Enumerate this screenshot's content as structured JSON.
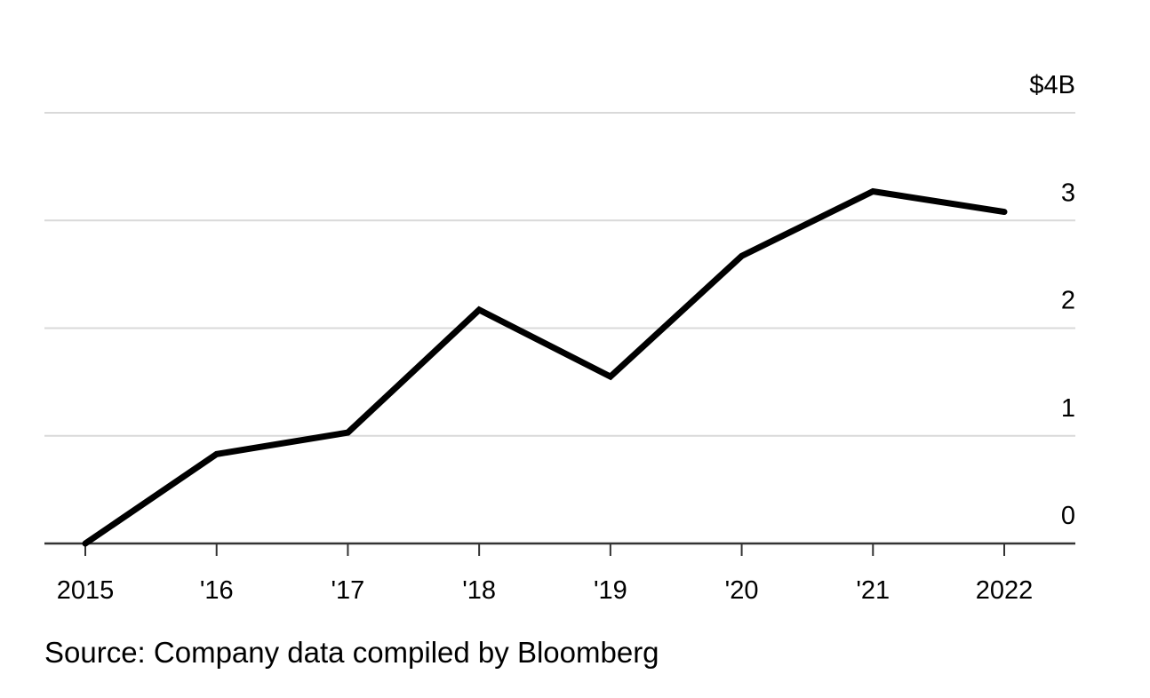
{
  "chart_data": {
    "type": "line",
    "x": [
      "2015",
      "'16",
      "'17",
      "'18",
      "'19",
      "'20",
      "'21",
      "2022"
    ],
    "series": [
      {
        "values": [
          0.0,
          0.83,
          1.03,
          2.17,
          1.55,
          2.67,
          3.27,
          3.08
        ]
      }
    ],
    "y_tick_labels": [
      "0",
      "1",
      "2",
      "3",
      "$4B"
    ],
    "ylim": [
      0,
      4
    ],
    "grid": true,
    "y_axis_side": "right",
    "line_color": "#000000",
    "grid_color": "#d9d9d9"
  },
  "source": "Source: Company data compiled by Bloomberg"
}
